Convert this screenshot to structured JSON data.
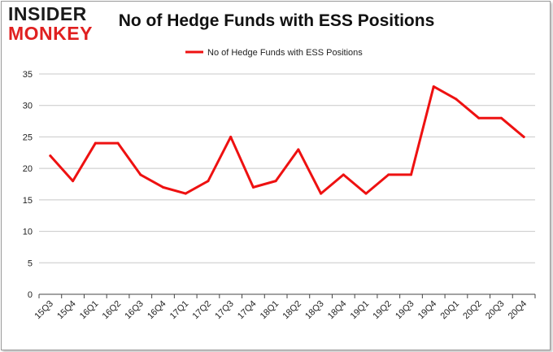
{
  "logo": {
    "line1": "INSIDER",
    "line2": "MONKEY"
  },
  "colors": {
    "series": "#ee1111",
    "grid": "#c8c8c8",
    "axis": "#444444",
    "logo_red": "#e02020"
  },
  "chart_data": {
    "type": "line",
    "title": "No of Hedge Funds with ESS Positions",
    "xlabel": "",
    "ylabel": "",
    "ylim": [
      0,
      35
    ],
    "yticks": [
      0,
      5,
      10,
      15,
      20,
      25,
      30,
      35
    ],
    "grid": true,
    "legend_position": "top-center",
    "categories": [
      "15Q3",
      "15Q4",
      "16Q1",
      "16Q2",
      "16Q3",
      "16Q4",
      "17Q1",
      "17Q2",
      "17Q3",
      "17Q4",
      "18Q1",
      "18Q2",
      "18Q3",
      "18Q4",
      "19Q1",
      "19Q2",
      "19Q3",
      "19Q4",
      "20Q1",
      "20Q2",
      "20Q3",
      "20Q4"
    ],
    "series": [
      {
        "name": "No of Hedge Funds with ESS Positions",
        "values": [
          22,
          18,
          24,
          24,
          19,
          17,
          16,
          18,
          25,
          17,
          18,
          23,
          16,
          19,
          16,
          19,
          19,
          33,
          31,
          28,
          28,
          25
        ]
      }
    ]
  }
}
